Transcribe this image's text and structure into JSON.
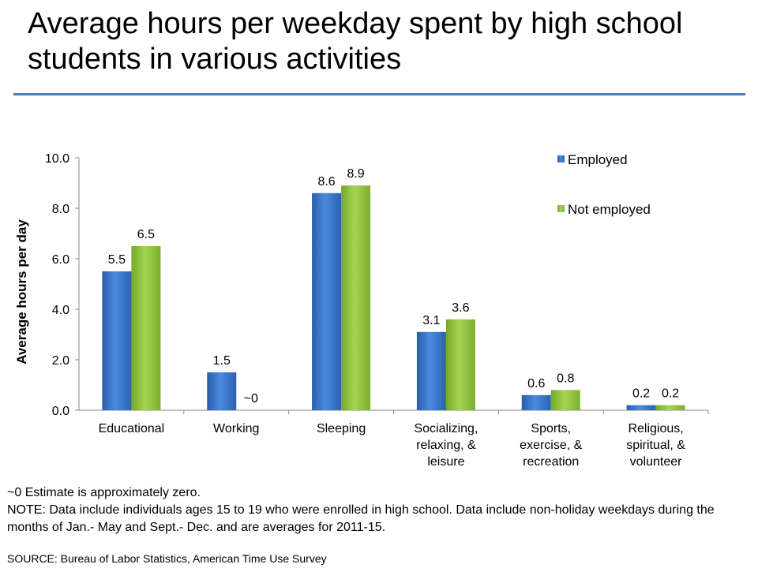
{
  "title": "Average hours per weekday spent by high school students in various activities",
  "colors": {
    "rule": "#4a7ebb",
    "employed": "#3a72c2",
    "not_employed": "#8dc23c",
    "axis": "#888888"
  },
  "notes": {
    "approx": "~0 Estimate is approximately zero.",
    "note": "NOTE: Data include individuals ages 15 to 19 who were enrolled in high school. Data include non-holiday weekdays during the months of Jan.- May and Sept.- Dec. and are averages for 2011-15.",
    "source": "SOURCE: Bureau of Labor Statistics, American Time Use Survey"
  },
  "chart_data": {
    "type": "bar",
    "title": "Average hours per weekday spent by high school students in various activities",
    "xlabel": "",
    "ylabel": "Average hours per day",
    "ylim": [
      0,
      10
    ],
    "yticks": [
      "0.0",
      "2.0",
      "4.0",
      "6.0",
      "8.0",
      "10.0"
    ],
    "grid": false,
    "legend_position": "top-right",
    "categories": [
      [
        "Educational"
      ],
      [
        "Working"
      ],
      [
        "Sleeping"
      ],
      [
        "Socializing,",
        "relaxing, &",
        "leisure"
      ],
      [
        "Sports,",
        "exercise, &",
        "recreation"
      ],
      [
        "Religious,",
        "spiritual, &",
        "volunteer"
      ]
    ],
    "series": [
      {
        "name": "Employed",
        "values": [
          5.5,
          1.5,
          8.6,
          3.1,
          0.6,
          0.2
        ],
        "labels": [
          "5.5",
          "1.5",
          "8.6",
          "3.1",
          "0.6",
          "0.2"
        ]
      },
      {
        "name": "Not employed",
        "values": [
          6.5,
          0,
          8.9,
          3.6,
          0.8,
          0.2
        ],
        "labels": [
          "6.5",
          "~0",
          "8.9",
          "3.6",
          "0.8",
          "0.2"
        ]
      }
    ]
  }
}
